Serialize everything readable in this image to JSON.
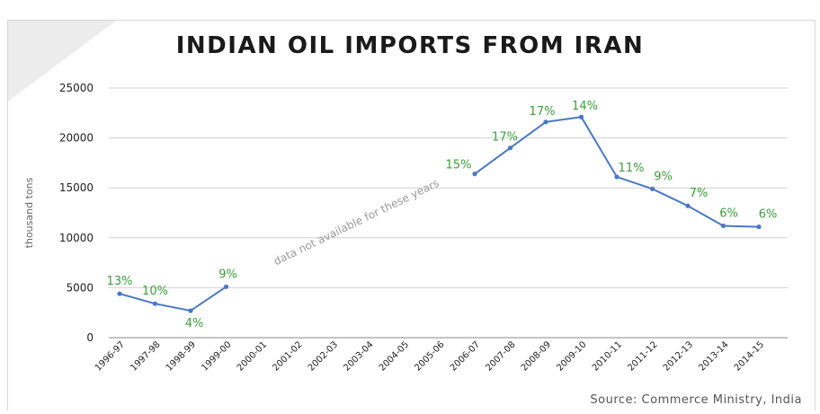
{
  "chart_data": {
    "type": "line",
    "title": "INDIAN OIL IMPORTS FROM IRAN",
    "ylabel": "thousand tons",
    "xlabel": "",
    "ylim": [
      0,
      25000
    ],
    "yticks": [
      0,
      5000,
      10000,
      15000,
      20000,
      25000
    ],
    "grid": true,
    "categories": [
      "1996-97",
      "1997-98",
      "1998-99",
      "1999-00",
      "2000-01",
      "2001-02",
      "2002-03",
      "2003-04",
      "2004-05",
      "2005-06",
      "2006-07",
      "2007-08",
      "2008-09",
      "2009-10",
      "2010-11",
      "2011-12",
      "2012-13",
      "2013-14",
      "2014-15"
    ],
    "series": [
      {
        "color": "#4a78c8",
        "values": [
          4400,
          3400,
          2700,
          5100,
          null,
          null,
          null,
          null,
          null,
          null,
          16400,
          19000,
          21600,
          22100,
          16100,
          14900,
          13200,
          11200,
          11100
        ],
        "labels": [
          "13%",
          "10%",
          "4%",
          "9%",
          null,
          null,
          null,
          null,
          null,
          null,
          "15%",
          "17%",
          "17%",
          "14%",
          "11%",
          "9%",
          "7%",
          "6%",
          "6%"
        ]
      }
    ],
    "annotation": "data not available for these years",
    "label_color": "#3aa03a"
  },
  "source": "Source: Commerce Ministry, India"
}
